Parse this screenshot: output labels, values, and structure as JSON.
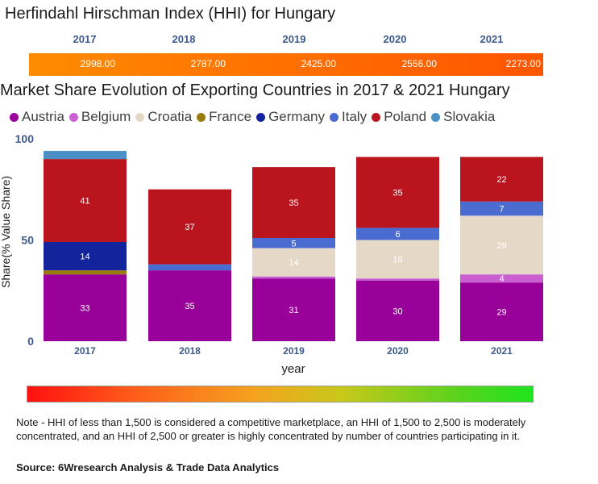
{
  "hhi": {
    "title": "Herfindahl Hirschman Index (HHI) for Hungary",
    "years": [
      "2017",
      "2018",
      "2019",
      "2020",
      "2021"
    ],
    "values": [
      "2998.00",
      "2787.00",
      "2425.00",
      "2556.00",
      "2273.00"
    ]
  },
  "chart_title": "Market Share Evolution of Exporting Countries in 2017 & 2021 Hungary",
  "legend": [
    {
      "name": "Austria",
      "color": "#990099"
    },
    {
      "name": "Belgium",
      "color": "#c95fd1"
    },
    {
      "name": "Croatia",
      "color": "#e5d8c7"
    },
    {
      "name": "France",
      "color": "#9a7b0e"
    },
    {
      "name": "Germany",
      "color": "#13239c"
    },
    {
      "name": "Italy",
      "color": "#4a6bcf"
    },
    {
      "name": "Poland",
      "color": "#ba141e"
    },
    {
      "name": "Slovakia",
      "color": "#4a90c6"
    }
  ],
  "chart_data": {
    "type": "bar",
    "stacked": true,
    "title": "Market Share Evolution of Exporting Countries in 2017 & 2021 Hungary",
    "xlabel": "year",
    "ylabel": "Share(% Value Share)",
    "categories": [
      "2017",
      "2018",
      "2019",
      "2020",
      "2021"
    ],
    "ylim": [
      0,
      100
    ],
    "yticks": [
      0,
      50,
      100
    ],
    "series": [
      {
        "name": "Austria",
        "color": "#990099",
        "values": [
          33,
          35,
          31,
          30,
          29
        ],
        "labels": [
          "33",
          "35",
          "31",
          "30",
          "29"
        ]
      },
      {
        "name": "Belgium",
        "color": "#c95fd1",
        "values": [
          0,
          0,
          1,
          1,
          4
        ],
        "labels": [
          "",
          "",
          "",
          "",
          "4"
        ]
      },
      {
        "name": "Croatia",
        "color": "#e5d8c7",
        "values": [
          0,
          0,
          14,
          19,
          29
        ],
        "labels": [
          "",
          "",
          "14",
          "19",
          "29"
        ]
      },
      {
        "name": "France",
        "color": "#9a7b0e",
        "values": [
          2,
          0,
          0,
          0,
          0
        ],
        "labels": [
          "",
          "",
          "",
          "",
          ""
        ]
      },
      {
        "name": "Germany",
        "color": "#13239c",
        "values": [
          14,
          0,
          0,
          0,
          0
        ],
        "labels": [
          "14",
          "",
          "",
          "",
          ""
        ]
      },
      {
        "name": "Italy",
        "color": "#4a6bcf",
        "values": [
          0,
          3,
          5,
          6,
          7
        ],
        "labels": [
          "",
          "",
          "5",
          "6",
          "7"
        ]
      },
      {
        "name": "Poland",
        "color": "#ba141e",
        "values": [
          41,
          37,
          35,
          35,
          22
        ],
        "labels": [
          "41",
          "37",
          "35",
          "35",
          "22"
        ]
      },
      {
        "name": "Slovakia",
        "color": "#4a90c6",
        "values": [
          4,
          0,
          0,
          0,
          0
        ],
        "labels": [
          "",
          "",
          "",
          "",
          ""
        ]
      }
    ]
  },
  "note": "Note - HHI of less than 1,500 is considered a competitive marketplace, an HHI of 1,500 to 2,500 is moderately concentrated, and an HHI of 2,500 or greater is highly concentrated by number of countries participating in it.",
  "source": "Source: 6Wresearch Analysis & Trade Data Analytics"
}
